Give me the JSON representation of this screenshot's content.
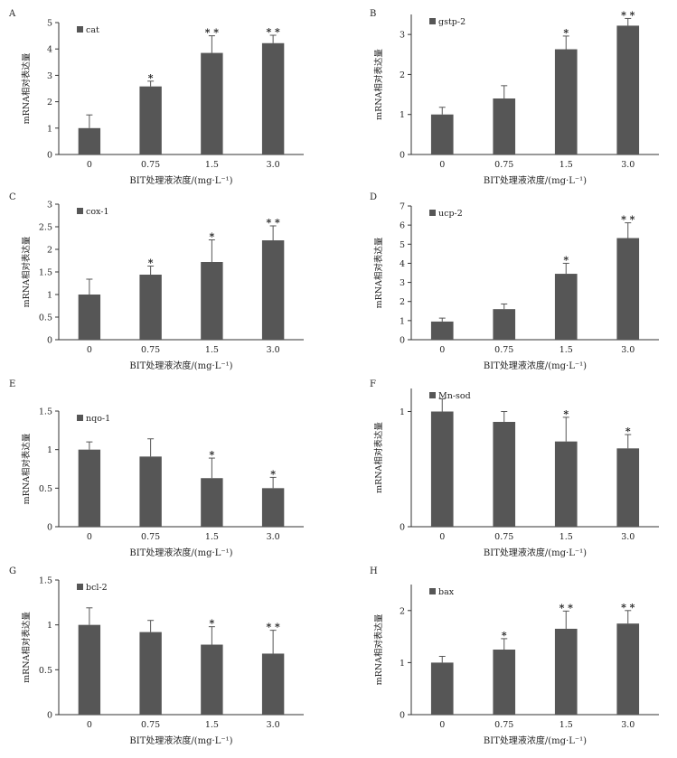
{
  "chart_data": [
    {
      "panel": "A",
      "legend": "cat",
      "type": "bar",
      "categories": [
        "0",
        "0.75",
        "1.5",
        "3.0"
      ],
      "values": [
        1.0,
        2.58,
        3.85,
        4.22
      ],
      "errors": [
        0.5,
        0.2,
        0.65,
        0.3
      ],
      "significance": [
        "",
        "*",
        "**",
        "**"
      ],
      "ylim": [
        0,
        5
      ],
      "yticks": [
        "0",
        "1",
        "2",
        "3",
        "4",
        "5"
      ],
      "ylabel": "mRNA相对表达量",
      "xlabel": "BIT处理液浓度/(mg·L⁻¹)"
    },
    {
      "panel": "B",
      "legend": "gstp-2",
      "type": "bar",
      "categories": [
        "0",
        "0.75",
        "1.5",
        "3.0"
      ],
      "values": [
        1.0,
        1.4,
        2.63,
        3.22
      ],
      "errors": [
        0.18,
        0.32,
        0.33,
        0.18
      ],
      "significance": [
        "",
        "",
        "*",
        "**"
      ],
      "ylim": [
        0,
        3.5
      ],
      "yticks": [
        "0",
        "1",
        "2",
        "3"
      ],
      "ylabel": "mRNA相对表达量",
      "xlabel": "BIT处理液浓度/(mg·L⁻¹)"
    },
    {
      "panel": "C",
      "legend": "cox-1",
      "type": "bar",
      "categories": [
        "0",
        "0.75",
        "1.5",
        "3.0"
      ],
      "values": [
        1.0,
        1.44,
        1.72,
        2.2
      ],
      "errors": [
        0.34,
        0.19,
        0.49,
        0.32
      ],
      "significance": [
        "",
        "*",
        "*",
        "**"
      ],
      "ylim": [
        0,
        3
      ],
      "yticks": [
        "0",
        "0.5",
        "1",
        "1.5",
        "2",
        "2.5",
        "3"
      ],
      "ylabel": "mRNA相对表达量",
      "xlabel": "BIT处理液浓度/(mg·L⁻¹)"
    },
    {
      "panel": "D",
      "legend": "ucp-2",
      "type": "bar",
      "categories": [
        "0",
        "0.75",
        "1.5",
        "3.0"
      ],
      "values": [
        0.95,
        1.6,
        3.45,
        5.32
      ],
      "errors": [
        0.18,
        0.27,
        0.55,
        0.8
      ],
      "significance": [
        "",
        "",
        "*",
        "**"
      ],
      "ylim": [
        0,
        7
      ],
      "yticks": [
        "0",
        "1",
        "2",
        "3",
        "4",
        "5",
        "6",
        "7"
      ],
      "ylabel": "mRNA相对表达量",
      "xlabel": "BIT处理液浓度/(mg·L⁻¹)"
    },
    {
      "panel": "E",
      "legend": "nqo-1",
      "type": "bar",
      "categories": [
        "0",
        "0.75",
        "1.5",
        "3.0"
      ],
      "values": [
        1.0,
        0.91,
        0.63,
        0.5
      ],
      "errors": [
        0.1,
        0.23,
        0.26,
        0.14
      ],
      "significance": [
        "",
        "",
        "*",
        "*"
      ],
      "ylim": [
        0,
        1.5
      ],
      "yticks": [
        "0",
        "0.5",
        "1",
        "1.5"
      ],
      "ylabel": "mRNA相对表达量",
      "xlabel": "BIT处理液浓度/(mg·L⁻¹)"
    },
    {
      "panel": "F",
      "legend": "Mn-sod",
      "type": "bar",
      "categories": [
        "0",
        "0.75",
        "1.5",
        "3.0"
      ],
      "values": [
        1.0,
        0.91,
        0.74,
        0.68
      ],
      "errors": [
        0.11,
        0.09,
        0.21,
        0.12
      ],
      "significance": [
        "",
        "",
        "*",
        "*"
      ],
      "ylim": [
        0,
        1.2
      ],
      "yticks": [
        "0",
        "1"
      ],
      "ylabel": "mRNA相对表达量",
      "xlabel": "BIT处理液浓度/(mg·L⁻¹)"
    },
    {
      "panel": "G",
      "legend": "bcl-2",
      "type": "bar",
      "categories": [
        "0",
        "0.75",
        "1.5",
        "3.0"
      ],
      "values": [
        1.0,
        0.92,
        0.78,
        0.68
      ],
      "errors": [
        0.19,
        0.13,
        0.2,
        0.26
      ],
      "significance": [
        "",
        "",
        "*",
        "**"
      ],
      "ylim": [
        0,
        1.5
      ],
      "yticks": [
        "0",
        "0.5",
        "1",
        "1.5"
      ],
      "ylabel": "mRNA相对表达量",
      "xlabel": "BIT处理液浓度/(mg·L⁻¹)"
    },
    {
      "panel": "H",
      "legend": "bax",
      "type": "bar",
      "categories": [
        "0",
        "0.75",
        "1.5",
        "3.0"
      ],
      "values": [
        1.0,
        1.25,
        1.65,
        1.75
      ],
      "errors": [
        0.12,
        0.21,
        0.34,
        0.25
      ],
      "significance": [
        "",
        "*",
        "**",
        "**"
      ],
      "ylim": [
        0,
        2.5
      ],
      "yticks": [
        "0",
        "1",
        "2"
      ],
      "ylabel": "mRNA相对表达量",
      "xlabel": "BIT处理液浓度/(mg·L⁻¹)"
    }
  ],
  "colors": {
    "bar": "#565656",
    "axis": "#333333",
    "text": "#222222"
  }
}
